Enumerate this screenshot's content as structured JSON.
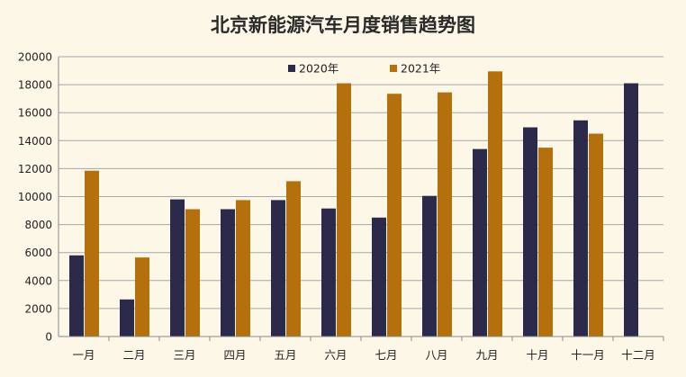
{
  "chart_data": {
    "type": "bar",
    "title": "北京新能源汽车月度销售趋势图",
    "xlabel": "",
    "ylabel": "",
    "categories": [
      "一月",
      "二月",
      "三月",
      "四月",
      "五月",
      "六月",
      "七月",
      "八月",
      "九月",
      "十月",
      "十一月",
      "十二月"
    ],
    "series": [
      {
        "name": "2020年",
        "color": "#2b2a4a",
        "values": [
          5800,
          2650,
          9800,
          9100,
          9750,
          9150,
          8500,
          10050,
          13400,
          14950,
          15450,
          18100
        ]
      },
      {
        "name": "2021年",
        "color": "#b5700e",
        "values": [
          11850,
          5650,
          9100,
          9750,
          11100,
          18100,
          17350,
          17450,
          18950,
          13500,
          14500,
          null
        ]
      }
    ],
    "ylim": [
      0,
      20000
    ],
    "yticks": [
      0,
      2000,
      4000,
      6000,
      8000,
      10000,
      12000,
      14000,
      16000,
      18000,
      20000
    ],
    "grid": true,
    "legend_position": "top-center"
  }
}
